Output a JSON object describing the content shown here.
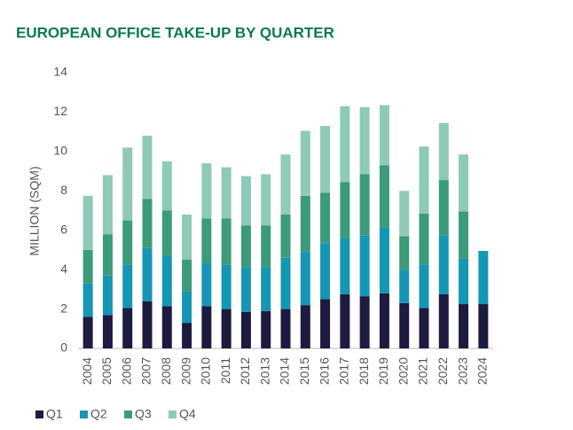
{
  "chart_data": {
    "type": "stacked_bar",
    "title": "EUROPEAN OFFICE TAKE-UP BY QUARTER",
    "y_label": "MILLION (SQM)",
    "categories": [
      "2004",
      "2005",
      "2006",
      "2007",
      "2008",
      "2009",
      "2010",
      "2011",
      "2012",
      "2013",
      "2014",
      "2015",
      "2016",
      "2017",
      "2018",
      "2019",
      "2020",
      "2021",
      "2022",
      "2023",
      "2024"
    ],
    "series": [
      {
        "name": "Q1",
        "color": "#1d1b3f",
        "values": [
          1.6,
          1.7,
          2.05,
          2.4,
          2.15,
          1.3,
          2.15,
          2.0,
          1.85,
          1.9,
          2.0,
          2.2,
          2.5,
          2.75,
          2.65,
          2.8,
          2.3,
          2.05,
          2.75,
          2.25,
          2.25
        ]
      },
      {
        "name": "Q2",
        "color": "#1696b5",
        "values": [
          1.7,
          2.0,
          2.2,
          2.7,
          2.55,
          1.6,
          2.15,
          2.25,
          2.25,
          2.2,
          2.6,
          2.7,
          2.85,
          2.85,
          3.1,
          3.35,
          1.7,
          2.2,
          3.0,
          2.3,
          2.7
        ]
      },
      {
        "name": "Q3",
        "color": "#3b9b7b",
        "values": [
          1.7,
          2.1,
          2.25,
          2.5,
          2.3,
          1.6,
          2.3,
          2.35,
          2.15,
          2.15,
          2.2,
          2.85,
          2.55,
          2.85,
          3.1,
          3.15,
          1.7,
          2.6,
          2.8,
          2.4,
          null
        ]
      },
      {
        "name": "Q4",
        "color": "#8ecab7",
        "values": [
          2.75,
          3.0,
          3.7,
          3.2,
          2.5,
          2.3,
          2.8,
          2.6,
          2.5,
          2.6,
          3.05,
          3.3,
          3.4,
          3.85,
          3.4,
          3.05,
          2.3,
          3.4,
          2.9,
          2.9,
          null
        ]
      }
    ],
    "ylim": [
      0,
      14
    ],
    "yticks": [
      0,
      2,
      4,
      6,
      8,
      10,
      12,
      14
    ],
    "grid": false,
    "legend": "bottom-left"
  }
}
